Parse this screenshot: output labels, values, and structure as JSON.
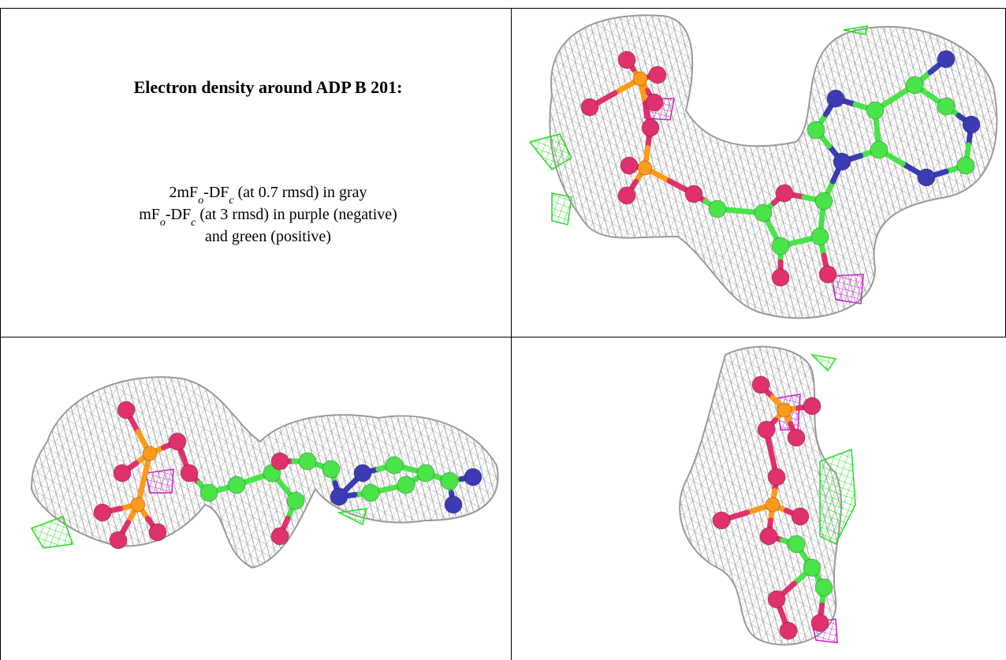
{
  "caption": {
    "title": "Electron density around ADP B 201:",
    "lines": [
      [
        "2mF",
        "o",
        "-DF",
        "c",
        " (at 0.7 rmsd) in gray"
      ],
      [
        "mF",
        "o",
        "-DF",
        "c",
        " (at 3 rmsd) in purple (negative)"
      ],
      [
        "and green (positive)"
      ]
    ]
  }
}
